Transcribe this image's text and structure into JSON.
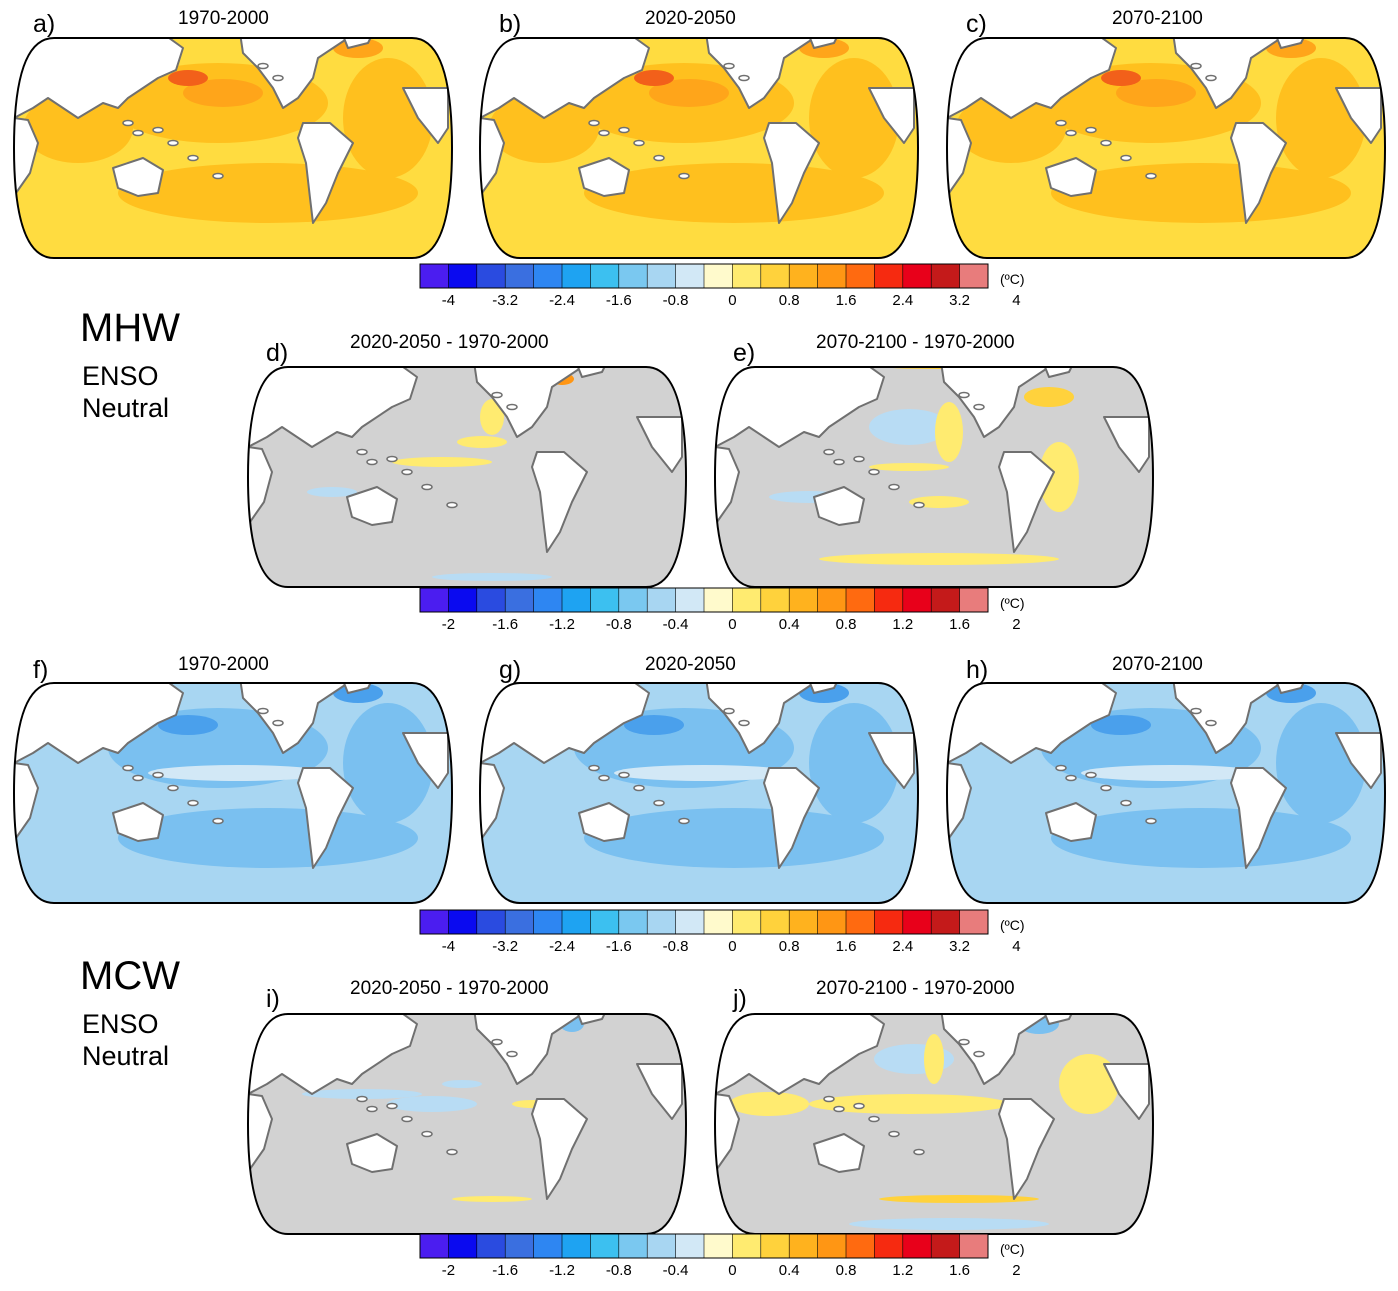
{
  "sections": [
    {
      "label": "MHW",
      "sublabel_lines": [
        "ENSO",
        "Neutral"
      ],
      "top_panels": [
        {
          "letter": "a)",
          "title": "1970-2000"
        },
        {
          "letter": "b)",
          "title": "2020-2050"
        },
        {
          "letter": "c)",
          "title": "2070-2100"
        }
      ],
      "top_colorbar": {
        "ticks": [
          "-4",
          "-3.2",
          "-2.4",
          "-1.6",
          "-0.8",
          "0",
          "0.8",
          "1.6",
          "2.4",
          "3.2",
          "4"
        ],
        "unit": "(ºC)"
      },
      "diff_panels": [
        {
          "letter": "d)",
          "title": "2020-2050 - 1970-2000"
        },
        {
          "letter": "e)",
          "title": "2070-2100 - 1970-2000"
        }
      ],
      "diff_colorbar": {
        "ticks": [
          "-2",
          "-1.6",
          "-1.2",
          "-0.8",
          "-0.4",
          "0",
          "0.4",
          "0.8",
          "1.2",
          "1.6",
          "2"
        ],
        "unit": "(ºC)"
      }
    },
    {
      "label": "MCW",
      "sublabel_lines": [
        "ENSO",
        "Neutral"
      ],
      "top_panels": [
        {
          "letter": "f)",
          "title": "1970-2000"
        },
        {
          "letter": "g)",
          "title": "2020-2050"
        },
        {
          "letter": "h)",
          "title": "2070-2100"
        }
      ],
      "top_colorbar": {
        "ticks": [
          "-4",
          "-3.2",
          "-2.4",
          "-1.6",
          "-0.8",
          "0",
          "0.8",
          "1.6",
          "2.4",
          "3.2",
          "4"
        ],
        "unit": "(ºC)"
      },
      "diff_panels": [
        {
          "letter": "i)",
          "title": "2020-2050 - 1970-2000"
        },
        {
          "letter": "j)",
          "title": "2070-2100 - 1970-2000"
        }
      ],
      "diff_colorbar": {
        "ticks": [
          "-2",
          "-1.6",
          "-1.2",
          "-0.8",
          "-0.4",
          "0",
          "0.4",
          "0.8",
          "1.2",
          "1.6",
          "2"
        ],
        "unit": "(ºC)"
      }
    }
  ],
  "colorbar_colors": [
    "#4b1df0",
    "#0a0af0",
    "#2a4be0",
    "#3a6fe0",
    "#2e86f2",
    "#1ea3f2",
    "#3cc0f0",
    "#7ac8f0",
    "#a8d6f2",
    "#d2e8f6",
    "#fffacc",
    "#ffeb70",
    "#ffd23c",
    "#ffb21e",
    "#ff9614",
    "#ff6a10",
    "#f62a10",
    "#e8001a",
    "#c41a1a",
    "#e87c7c"
  ],
  "map_colors": {
    "mhw_base": "#ffdc40",
    "mhw_warm": "#ffc01e",
    "mhw_hot": "#ffa51a",
    "mhw_peak": "#f2601a",
    "mcw_base": "#a8d6f2",
    "mcw_cool": "#7ac0f0",
    "mcw_cold": "#4aa0ec",
    "mcw_light": "#d2e8f6",
    "diff_base": "#d2d2d2",
    "diff_pos": "#ffeb70",
    "diff_pos2": "#ffd23c",
    "diff_pos3": "#ff9614",
    "diff_neg": "#b8dcf4",
    "diff_neg2": "#7ac0f0",
    "land": "#ffffff",
    "coast": "#707070"
  }
}
